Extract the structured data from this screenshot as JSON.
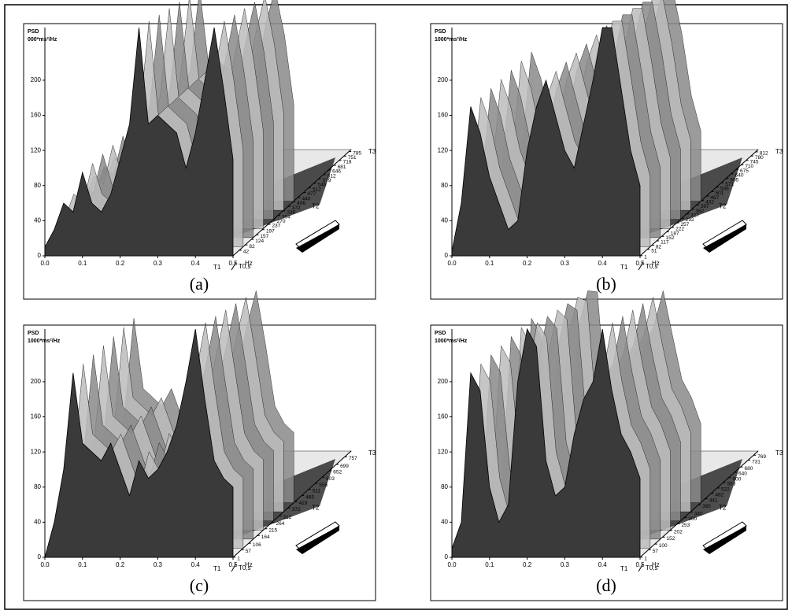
{
  "chart_data": [
    {
      "type": "waterfall",
      "caption": "(a)",
      "ylabel": "PSD",
      "yunit": "000*ms²/Hz",
      "xlabel": "Hz",
      "zlabel": "T0,s",
      "depth_labels": [
        "T1",
        "T2",
        "T3"
      ],
      "xlim": [
        0,
        0.5
      ],
      "xticks": [
        {
          "value": 0,
          "label": "0.0"
        },
        0.1,
        0.2,
        0.3,
        0.4,
        0.5
      ],
      "ylim": [
        0,
        260
      ],
      "yticks": [
        0,
        40,
        80,
        120,
        160,
        200
      ],
      "zlim": [
        0,
        800
      ],
      "zticks": [
        785,
        751,
        718,
        681,
        646,
        612,
        579,
        546,
        512,
        477,
        440,
        406,
        372,
        338,
        304,
        270,
        237,
        197,
        157,
        124,
        82,
        42
      ],
      "x": [
        0,
        0.025,
        0.05,
        0.075,
        0.1,
        0.125,
        0.15,
        0.175,
        0.2,
        0.225,
        0.25,
        0.275,
        0.3,
        0.325,
        0.35,
        0.375,
        0.4,
        0.425,
        0.45,
        0.475,
        0.5
      ],
      "values": [
        10,
        30,
        60,
        50,
        95,
        60,
        50,
        70,
        110,
        150,
        260,
        150,
        160,
        150,
        140,
        100,
        140,
        200,
        260,
        190,
        110
      ]
    },
    {
      "type": "waterfall",
      "caption": "(b)",
      "ylabel": "PSD",
      "yunit": "1000*ms²/Hz",
      "xlabel": "Hz",
      "zlabel": "T0,s",
      "depth_labels": [
        "T1",
        "T2",
        "T3"
      ],
      "xlim": [
        0,
        0.5
      ],
      "xticks": [
        {
          "value": 0,
          "label": "0.0"
        },
        0.1,
        0.2,
        0.3,
        0.4,
        0.5
      ],
      "ylim": [
        0,
        260
      ],
      "yticks": [
        0,
        40,
        80,
        120,
        160,
        200
      ],
      "zlim": [
        0,
        830
      ],
      "zticks": [
        812,
        780,
        745,
        710,
        675,
        640,
        605,
        571,
        536,
        501,
        467,
        432,
        397,
        362,
        327,
        292,
        257,
        222,
        187,
        152,
        117,
        82,
        51,
        1
      ],
      "x": [
        0,
        0.025,
        0.05,
        0.075,
        0.1,
        0.125,
        0.15,
        0.175,
        0.2,
        0.225,
        0.25,
        0.275,
        0.3,
        0.325,
        0.35,
        0.375,
        0.4,
        0.425,
        0.45,
        0.475,
        0.5
      ],
      "values": [
        5,
        60,
        170,
        140,
        90,
        60,
        30,
        40,
        120,
        170,
        200,
        160,
        120,
        100,
        150,
        200,
        260,
        260,
        190,
        120,
        80
      ]
    },
    {
      "type": "waterfall",
      "caption": "(c)",
      "ylabel": "PSD",
      "yunit": "1000*ms²/Hz",
      "xlabel": "Hz",
      "zlabel": "T0,s",
      "depth_labels": [
        "T1",
        "T2",
        "T3"
      ],
      "xlim": [
        0,
        0.5
      ],
      "xticks": [
        {
          "value": 0,
          "label": "0.0"
        },
        0.1,
        0.2,
        0.3,
        0.4,
        0.5
      ],
      "ylim": [
        0,
        260
      ],
      "yticks": [
        0,
        40,
        80,
        120,
        160,
        200
      ],
      "zlim": [
        0,
        800
      ],
      "zticks": [
        757,
        699,
        652,
        603,
        556,
        511,
        465,
        419,
        372,
        312,
        264,
        215,
        164,
        106,
        57,
        1
      ],
      "x": [
        0,
        0.025,
        0.05,
        0.075,
        0.1,
        0.125,
        0.15,
        0.175,
        0.2,
        0.225,
        0.25,
        0.275,
        0.3,
        0.325,
        0.35,
        0.375,
        0.4,
        0.425,
        0.45,
        0.475,
        0.5
      ],
      "values": [
        0,
        40,
        100,
        210,
        130,
        120,
        110,
        130,
        100,
        70,
        110,
        90,
        100,
        120,
        150,
        200,
        260,
        180,
        110,
        90,
        80
      ]
    },
    {
      "type": "waterfall",
      "caption": "(d)",
      "ylabel": "PSD",
      "yunit": "1000*ms²/Hz",
      "xlabel": "Hz",
      "zlabel": "T0,s",
      "depth_labels": [
        "T1",
        "T2",
        "T3"
      ],
      "xlim": [
        0,
        0.5
      ],
      "xticks": [
        {
          "value": 0,
          "label": "0.0"
        },
        0.1,
        0.2,
        0.3,
        0.4,
        0.5
      ],
      "ylim": [
        0,
        260
      ],
      "yticks": [
        0,
        40,
        80,
        120,
        160,
        200
      ],
      "zlim": [
        0,
        800
      ],
      "zticks": [
        769,
        731,
        680,
        640,
        600,
        563,
        522,
        482,
        441,
        395,
        340,
        300,
        253,
        202,
        152,
        100,
        57,
        1
      ],
      "x": [
        0,
        0.025,
        0.05,
        0.075,
        0.1,
        0.125,
        0.15,
        0.175,
        0.2,
        0.225,
        0.25,
        0.275,
        0.3,
        0.325,
        0.35,
        0.375,
        0.4,
        0.425,
        0.45,
        0.475,
        0.5
      ],
      "values": [
        10,
        40,
        210,
        190,
        80,
        40,
        60,
        200,
        260,
        240,
        110,
        70,
        80,
        140,
        180,
        200,
        260,
        190,
        140,
        120,
        90
      ]
    }
  ]
}
